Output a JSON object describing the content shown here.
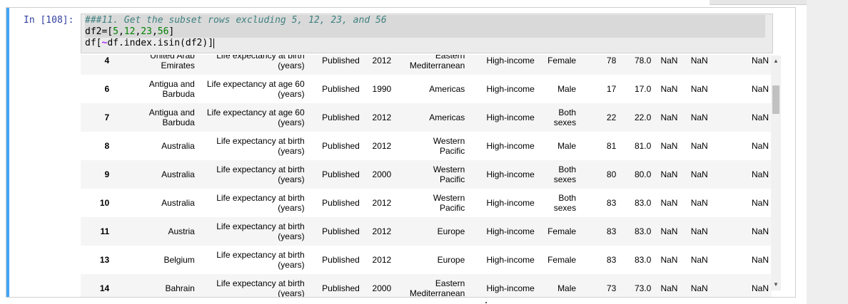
{
  "cell": {
    "prompt": "In [108]:",
    "code": {
      "line1": "###11. Get the subset rows excluding 5, 12, 23, and 56",
      "line2_prefix": "df2=[",
      "line2_n1": "5",
      "line2_n2": "12",
      "line2_n3": "23",
      "line2_n4": "56",
      "line2_suffix": "]",
      "line3_a": "df[",
      "line3_op": "~",
      "line3_b": "df.index.isin(df2)]"
    }
  },
  "table": {
    "rows": [
      {
        "idx": "4",
        "country": "United Arab\nEmirates",
        "indicator": "Life expectancy at birth\n(years)",
        "status": "Published",
        "year": "2012",
        "region": "Eastern\nMediterranean",
        "income": "High-income",
        "sex": "Female",
        "v1": "78",
        "v2": "78.0",
        "c1": "NaN",
        "c2": "NaN",
        "c3": "NaN"
      },
      {
        "idx": "6",
        "country": "Antigua and Barbuda",
        "indicator": "Life expectancy at age 60\n(years)",
        "status": "Published",
        "year": "1990",
        "region": "Americas",
        "income": "High-income",
        "sex": "Male",
        "v1": "17",
        "v2": "17.0",
        "c1": "NaN",
        "c2": "NaN",
        "c3": "NaN"
      },
      {
        "idx": "7",
        "country": "Antigua and Barbuda",
        "indicator": "Life expectancy at age 60\n(years)",
        "status": "Published",
        "year": "2012",
        "region": "Americas",
        "income": "High-income",
        "sex": "Both\nsexes",
        "v1": "22",
        "v2": "22.0",
        "c1": "NaN",
        "c2": "NaN",
        "c3": "NaN"
      },
      {
        "idx": "8",
        "country": "Australia",
        "indicator": "Life expectancy at birth\n(years)",
        "status": "Published",
        "year": "2012",
        "region": "Western\nPacific",
        "income": "High-income",
        "sex": "Male",
        "v1": "81",
        "v2": "81.0",
        "c1": "NaN",
        "c2": "NaN",
        "c3": "NaN"
      },
      {
        "idx": "9",
        "country": "Australia",
        "indicator": "Life expectancy at birth\n(years)",
        "status": "Published",
        "year": "2000",
        "region": "Western\nPacific",
        "income": "High-income",
        "sex": "Both\nsexes",
        "v1": "80",
        "v2": "80.0",
        "c1": "NaN",
        "c2": "NaN",
        "c3": "NaN"
      },
      {
        "idx": "10",
        "country": "Australia",
        "indicator": "Life expectancy at birth\n(years)",
        "status": "Published",
        "year": "2012",
        "region": "Western\nPacific",
        "income": "High-income",
        "sex": "Both\nsexes",
        "v1": "83",
        "v2": "83.0",
        "c1": "NaN",
        "c2": "NaN",
        "c3": "NaN"
      },
      {
        "idx": "11",
        "country": "Austria",
        "indicator": "Life expectancy at birth\n(years)",
        "status": "Published",
        "year": "2012",
        "region": "Europe",
        "income": "High-income",
        "sex": "Female",
        "v1": "83",
        "v2": "83.0",
        "c1": "NaN",
        "c2": "NaN",
        "c3": "NaN"
      },
      {
        "idx": "13",
        "country": "Belgium",
        "indicator": "Life expectancy at birth\n(years)",
        "status": "Published",
        "year": "2012",
        "region": "Europe",
        "income": "High-income",
        "sex": "Female",
        "v1": "83",
        "v2": "83.0",
        "c1": "NaN",
        "c2": "NaN",
        "c3": "NaN"
      },
      {
        "idx": "14",
        "country": "Bahrain",
        "indicator": "Life expectancy at birth\n(years)",
        "status": "Published",
        "year": "2000",
        "region": "Eastern\nMediterranean",
        "income": "High-income",
        "sex": "Male",
        "v1": "73",
        "v2": "73.0",
        "c1": "NaN",
        "c2": "NaN",
        "c3": "NaN"
      }
    ]
  },
  "scrollbar": {
    "up_icon": "triangle-up",
    "down_icon": "triangle-down"
  }
}
